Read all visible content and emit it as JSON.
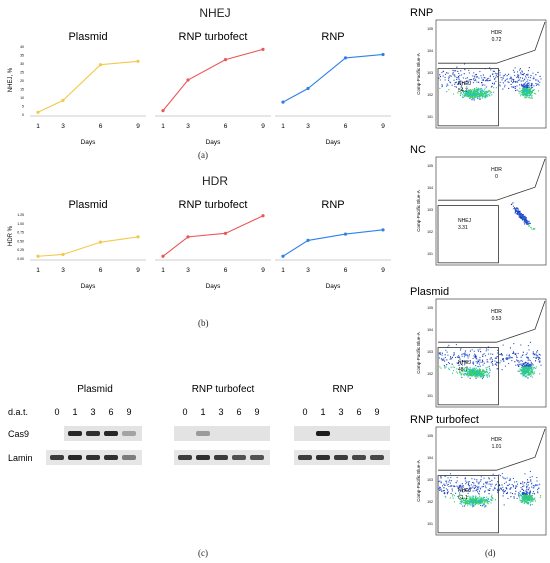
{
  "nhej": {
    "title": "NHEJ",
    "ylabel": "NHEJ, %",
    "xlabel": "Days",
    "panel_label": "(a)"
  },
  "hdr": {
    "title": "HDR",
    "ylabel": "HDR %",
    "xlabel": "Days",
    "panel_label": "(b)"
  },
  "blot": {
    "panel_label": "(c)",
    "row_labels": [
      "d.a.t.",
      "Cas9",
      "Lamin"
    ],
    "groups": [
      {
        "title": "Plasmid",
        "lanes": [
          "0",
          "1",
          "3",
          "6",
          "9"
        ],
        "cas9": [
          0,
          0.9,
          0.85,
          0.9,
          0.3
        ],
        "lamin": [
          0.8,
          0.9,
          0.85,
          0.85,
          0.5
        ]
      },
      {
        "title": "RNP turbofect",
        "lanes": [
          "0",
          "1",
          "3",
          "6",
          "9"
        ],
        "cas9": [
          0,
          0.35,
          0,
          0,
          0
        ],
        "lamin": [
          0.8,
          0.85,
          0.8,
          0.7,
          0.7
        ]
      },
      {
        "title": "RNP",
        "lanes": [
          "0",
          "1",
          "3",
          "6",
          "9"
        ],
        "cas9": [
          0,
          0.95,
          0,
          0,
          0
        ],
        "lamin": [
          0.8,
          0.85,
          0.8,
          0.75,
          0.75
        ]
      }
    ]
  },
  "facs": {
    "panel_label": "(d)",
    "ylabel": "Comp-Pacific Blue-A",
    "plots": [
      {
        "title": "RNP",
        "hdr_label": "HDR",
        "hdr_value": "0.72",
        "nhej_label": "NHEJ",
        "nhej_value": "54.7"
      },
      {
        "title": "NC",
        "hdr_label": "HDR",
        "hdr_value": "0",
        "nhej_label": "NHEJ",
        "nhej_value": "3.31"
      },
      {
        "title": "Plasmid",
        "hdr_label": "HDR",
        "hdr_value": "0.53",
        "nhej_label": "NHEJ",
        "nhej_value": "48.7"
      },
      {
        "title": "RNP turbofect",
        "hdr_label": "HDR",
        "hdr_value": "1.01",
        "nhej_label": "NHEJ",
        "nhej_value": "61.1"
      }
    ]
  },
  "chart_data": [
    {
      "type": "line",
      "title": "Plasmid",
      "group": "NHEJ",
      "x": [
        1,
        3,
        6,
        9
      ],
      "values": [
        1,
        8,
        29,
        31
      ],
      "color": "#f2c94c",
      "ylim": [
        0,
        40
      ],
      "yticks": [
        0,
        5,
        10,
        15,
        20,
        25,
        30,
        35,
        40
      ],
      "xlabel": "Days",
      "ylabel": "NHEJ, %"
    },
    {
      "type": "line",
      "title": "RNP turbofect",
      "group": "NHEJ",
      "x": [
        1,
        3,
        6,
        9
      ],
      "values": [
        2,
        20,
        32,
        38
      ],
      "color": "#eb5757",
      "ylim": [
        0,
        40
      ],
      "xlabel": "Days"
    },
    {
      "type": "line",
      "title": "RNP",
      "group": "NHEJ",
      "x": [
        1,
        3,
        6,
        9
      ],
      "values": [
        7,
        15,
        33,
        35
      ],
      "color": "#2f80ed",
      "ylim": [
        0,
        40
      ],
      "xlabel": "Days"
    },
    {
      "type": "line",
      "title": "Plasmid",
      "group": "HDR",
      "x": [
        1,
        3,
        6,
        9
      ],
      "values": [
        0.05,
        0.1,
        0.45,
        0.6
      ],
      "color": "#f2c94c",
      "ylim": [
        0,
        1.25
      ],
      "yticks": [
        0,
        0.25,
        0.5,
        0.75,
        1,
        1.25
      ],
      "xlabel": "Days",
      "ylabel": "HDR %"
    },
    {
      "type": "line",
      "title": "RNP turbofect",
      "group": "HDR",
      "x": [
        1,
        3,
        6,
        9
      ],
      "values": [
        0.05,
        0.6,
        0.7,
        1.2
      ],
      "color": "#eb5757",
      "ylim": [
        0,
        1.25
      ],
      "xlabel": "Days"
    },
    {
      "type": "line",
      "title": "RNP",
      "group": "HDR",
      "x": [
        1,
        3,
        6,
        9
      ],
      "values": [
        0.05,
        0.5,
        0.68,
        0.8
      ],
      "color": "#2f80ed",
      "ylim": [
        0,
        1.25
      ],
      "xlabel": "Days"
    }
  ]
}
